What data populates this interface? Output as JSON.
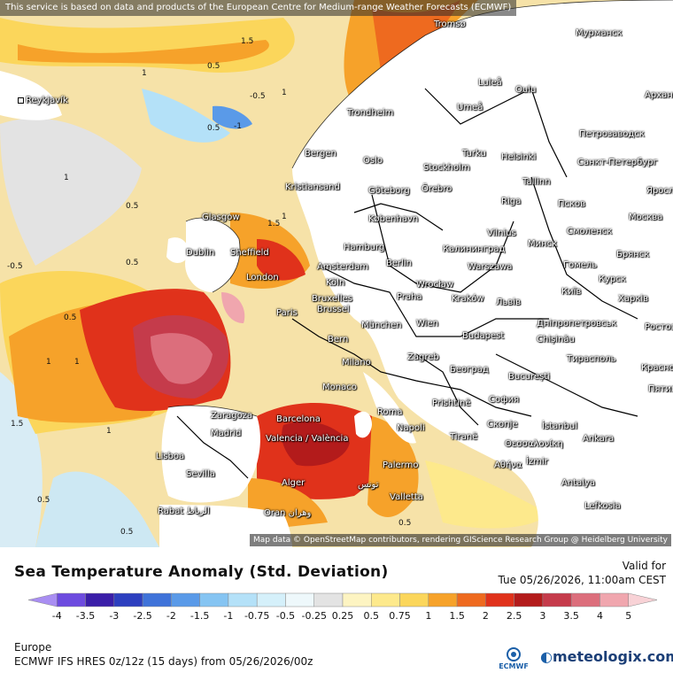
{
  "map": {
    "attribution_top": "This service is based on data and products of the European Centre for Medium-range Weather Forecasts (ECMWF)",
    "attribution_bottom": "Map data © OpenStreetMap contributors, rendering GIScience Research Group @ Heidelberg University",
    "cities": [
      "Reykjavík",
      "Tromsø",
      "Мурманск",
      "Luleå",
      "Oulu",
      "Umeå",
      "Архангельск",
      "Trondheim",
      "Петрозаводск",
      "Bergen",
      "Oslo",
      "Stockholm",
      "Turku",
      "Helsinki",
      "Санкт-Петербург",
      "Örebro",
      "Tallinn",
      "Kristiansand",
      "Göteborg",
      "Riga",
      "Псков",
      "Ярославль",
      "Glasgow",
      "København",
      "Vilnius",
      "Смоленск",
      "Москва",
      "Dublin",
      "Sheffield",
      "Hamburg",
      "Калининград",
      "Минск",
      "Брянск",
      "London",
      "Amsterdam",
      "Berlin",
      "Warszawa",
      "Гомель",
      "Курск",
      "Köln",
      "Brussel",
      "Bruxelles",
      "Wrocław",
      "Київ",
      "Харків",
      "Paris",
      "Praha",
      "Kraków",
      "Львів",
      "München",
      "Wien",
      "Дніпропетровськ",
      "Bern",
      "Budapest",
      "Chișinău",
      "Milano",
      "Zagreb",
      "Тирасполь",
      "Београд",
      "București",
      "Monaco",
      "Roma",
      "Prishtinë",
      "София",
      "Zaragoza",
      "Barcelona",
      "Madrid",
      "Napoli",
      "Tiranë",
      "Скопје",
      "İstanbul",
      "Valencia / València",
      "Θεσσαλονίκη",
      "Ankara",
      "Lisboa",
      "Sevilla",
      "Palermo",
      "Αθήνα",
      "İzmir",
      "Alger",
      "تونس",
      "Valletta",
      "Antalya",
      "Rabat الرباط",
      "Oran وهران",
      "Lefkosia",
      "Краснодар",
      "Пятигорск",
      "Ростов"
    ],
    "contour_labels": [
      "1.5",
      "0.5",
      "-0.5",
      "1",
      "0.5",
      "-1",
      "1",
      "0.5",
      "1.5",
      "1",
      "0.5",
      "0.5",
      "-0.5",
      "1",
      "1",
      "1.5",
      "1",
      "0.5",
      "0.5",
      "0.5",
      "1"
    ]
  },
  "legend": {
    "title": "Sea Temperature Anomaly (Std. Deviation)",
    "valid_label": "Valid for",
    "valid_time": "Tue 05/26/2026, 11:00am CEST",
    "ticks": [
      "-4",
      "-3.5",
      "-3",
      "-2.5",
      "-2",
      "-1.5",
      "-1",
      "-0.75",
      "-0.5",
      "-0.25",
      "0.25",
      "0.5",
      "0.75",
      "1",
      "1.5",
      "2",
      "2.5",
      "3",
      "3.5",
      "4",
      "5"
    ],
    "colors": [
      "#a98ef2",
      "#6d4bdf",
      "#3a1ea8",
      "#2d3fbf",
      "#3f73d9",
      "#5a9ae8",
      "#85c4f2",
      "#b4e1f8",
      "#d5f0fa",
      "#eef8fb",
      "#e3e3e3",
      "#fdf4c2",
      "#fde98c",
      "#fbd65b",
      "#f6a22a",
      "#ee6a1f",
      "#e0321b",
      "#b31b1b",
      "#c53b4b",
      "#dc6e7c",
      "#f0a6ae",
      "#f8d2d6"
    ],
    "region": "Europe",
    "model": "ECMWF IFS HRES 0z/12z (15 days) from 05/26/2026/00z",
    "ecmwf_logo_text": "ECMWF",
    "brand": "meteologix.com"
  }
}
